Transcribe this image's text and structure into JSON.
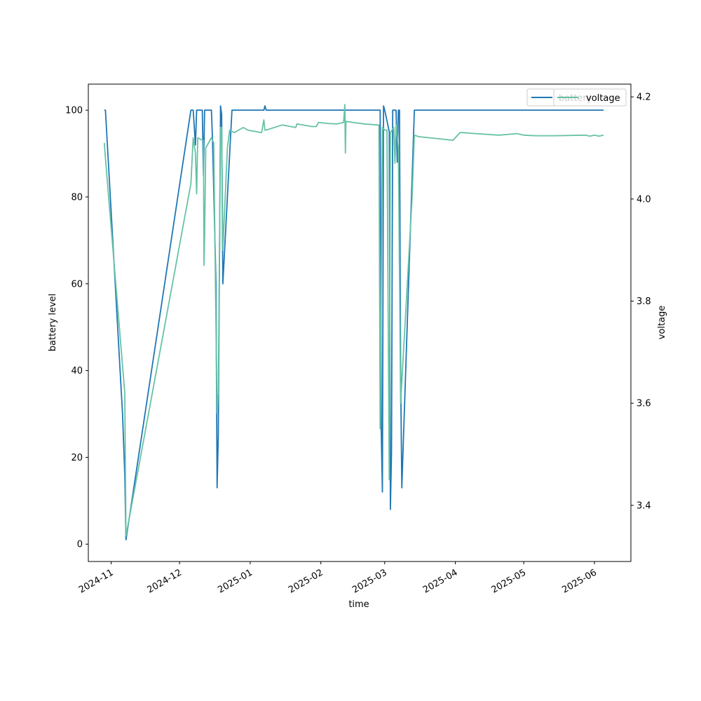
{
  "chart_data": {
    "type": "line",
    "title": "",
    "xlabel": "time",
    "ylabel": "battery level",
    "y2label": "voltage",
    "xlim": [
      "2024-10-22",
      "2025-06-17"
    ],
    "ylim": [
      -4,
      106
    ],
    "y2lim": [
      3.29,
      4.225
    ],
    "xticks": [
      "2024-11",
      "2024-12",
      "2025-01",
      "2025-02",
      "2025-03",
      "2025-04",
      "2025-05",
      "2025-06"
    ],
    "yticks": [
      0,
      20,
      40,
      60,
      80,
      100
    ],
    "y2ticks": [
      3.4,
      3.6,
      3.8,
      4.0,
      4.2
    ],
    "grid": false,
    "legend_position": "top-right",
    "series": [
      {
        "name": "battery",
        "axis": "left",
        "color": "#1f77b4",
        "points": [
          [
            "2024-10-29",
            100
          ],
          [
            "2024-10-29 12:00",
            100
          ],
          [
            "2024-11-06",
            30
          ],
          [
            "2024-11-07",
            16
          ],
          [
            "2024-11-07 12:00",
            1
          ],
          [
            "2024-12-06",
            100
          ],
          [
            "2024-12-07",
            100
          ],
          [
            "2024-12-08",
            92
          ],
          [
            "2024-12-08 12:00",
            100
          ],
          [
            "2024-12-11",
            100
          ],
          [
            "2024-12-11 12:00",
            85
          ],
          [
            "2024-12-12",
            100
          ],
          [
            "2024-12-15",
            100
          ],
          [
            "2024-12-15 12:00",
            93
          ],
          [
            "2024-12-17",
            60
          ],
          [
            "2024-12-17 12:00",
            13
          ],
          [
            "2024-12-18",
            25
          ],
          [
            "2024-12-19",
            101
          ],
          [
            "2024-12-19 12:00",
            99
          ],
          [
            "2024-12-20",
            60
          ],
          [
            "2024-12-24",
            100
          ],
          [
            "2025-01-07",
            100
          ],
          [
            "2025-01-07 12:00",
            101
          ],
          [
            "2025-01-08",
            100
          ],
          [
            "2025-02-27",
            100
          ],
          [
            "2025-02-27 12:00",
            26
          ],
          [
            "2025-02-28",
            12
          ],
          [
            "2025-02-28 12:00",
            101
          ],
          [
            "2025-03-01",
            100
          ],
          [
            "2025-03-03",
            95
          ],
          [
            "2025-03-03 12:00",
            8
          ],
          [
            "2025-03-04",
            21
          ],
          [
            "2025-03-04 12:00",
            100
          ],
          [
            "2025-03-06",
            100
          ],
          [
            "2025-03-06 12:00",
            88
          ],
          [
            "2025-03-07",
            100
          ],
          [
            "2025-03-07 12:00",
            100
          ],
          [
            "2025-03-08",
            40
          ],
          [
            "2025-03-08 12:00",
            13
          ],
          [
            "2025-03-14",
            100
          ],
          [
            "2025-06-05",
            100
          ]
        ]
      },
      {
        "name": "voltage",
        "axis": "right",
        "color": "#66c2a5",
        "points": [
          [
            "2024-10-29",
            4.11
          ],
          [
            "2024-10-29 12:00",
            4.08
          ],
          [
            "2024-11-07",
            3.62
          ],
          [
            "2024-11-07 12:00",
            3.34
          ],
          [
            "2024-12-06",
            4.03
          ],
          [
            "2024-12-07",
            4.12
          ],
          [
            "2024-12-08",
            4.09
          ],
          [
            "2024-12-08 12:00",
            4.01
          ],
          [
            "2024-12-09",
            4.12
          ],
          [
            "2024-12-11",
            4.115
          ],
          [
            "2024-12-11 12:00",
            4.115
          ],
          [
            "2024-12-11 18:00",
            3.87
          ],
          [
            "2024-12-12",
            3.93
          ],
          [
            "2024-12-12 12:00",
            4.1
          ],
          [
            "2024-12-15",
            4.12
          ],
          [
            "2024-12-16",
            4.11
          ],
          [
            "2024-12-17",
            3.75
          ],
          [
            "2024-12-17 12:00",
            3.58
          ],
          [
            "2024-12-18",
            3.62
          ],
          [
            "2024-12-19",
            4.14
          ],
          [
            "2024-12-19 12:00",
            4.14
          ],
          [
            "2024-12-20",
            3.9
          ],
          [
            "2024-12-20 12:00",
            3.95
          ],
          [
            "2024-12-22",
            4.1
          ],
          [
            "2024-12-23",
            4.135
          ],
          [
            "2024-12-25",
            4.13
          ],
          [
            "2024-12-29",
            4.14
          ],
          [
            "2024-12-31",
            4.135
          ],
          [
            "2025-01-06",
            4.13
          ],
          [
            "2025-01-07",
            4.155
          ],
          [
            "2025-01-07 12:00",
            4.135
          ],
          [
            "2025-01-08",
            4.135
          ],
          [
            "2025-01-15",
            4.145
          ],
          [
            "2025-01-21",
            4.14
          ],
          [
            "2025-01-21 12:00",
            4.147
          ],
          [
            "2025-01-28",
            4.142
          ],
          [
            "2025-01-30",
            4.142
          ],
          [
            "2025-01-31",
            4.15
          ],
          [
            "2025-02-04",
            4.148
          ],
          [
            "2025-02-08",
            4.147
          ],
          [
            "2025-02-11",
            4.15
          ],
          [
            "2025-02-11 12:00",
            4.185
          ],
          [
            "2025-02-11 18:00",
            4.09
          ],
          [
            "2025-02-12",
            4.152
          ],
          [
            "2025-02-15",
            4.15
          ],
          [
            "2025-02-20",
            4.147
          ],
          [
            "2025-02-26",
            4.145
          ],
          [
            "2025-02-26 12:00",
            4.145
          ],
          [
            "2025-02-27",
            3.55
          ],
          [
            "2025-02-28",
            4.14
          ],
          [
            "2025-03-01",
            4.135
          ],
          [
            "2025-03-02",
            4.135
          ],
          [
            "2025-03-03",
            3.45
          ],
          [
            "2025-03-03 12:00",
            4.13
          ],
          [
            "2025-03-05",
            4.14
          ],
          [
            "2025-03-05 12:00",
            4.07
          ],
          [
            "2025-03-06",
            4.145
          ],
          [
            "2025-03-07",
            4.1
          ],
          [
            "2025-03-08",
            3.6
          ],
          [
            "2025-03-13",
            4.0
          ],
          [
            "2025-03-14",
            4.125
          ],
          [
            "2025-03-16",
            4.122
          ],
          [
            "2025-03-31",
            4.115
          ],
          [
            "2025-04-03",
            4.13
          ],
          [
            "2025-04-04",
            4.13
          ],
          [
            "2025-04-10",
            4.128
          ],
          [
            "2025-04-20",
            4.125
          ],
          [
            "2025-04-28",
            4.128
          ],
          [
            "2025-05-01",
            4.125
          ],
          [
            "2025-05-06",
            4.124
          ],
          [
            "2025-05-15",
            4.124
          ],
          [
            "2025-05-28",
            4.125
          ],
          [
            "2025-05-30",
            4.123
          ],
          [
            "2025-06-01",
            4.125
          ],
          [
            "2025-06-03",
            4.123
          ],
          [
            "2025-06-05",
            4.125
          ]
        ]
      }
    ]
  }
}
